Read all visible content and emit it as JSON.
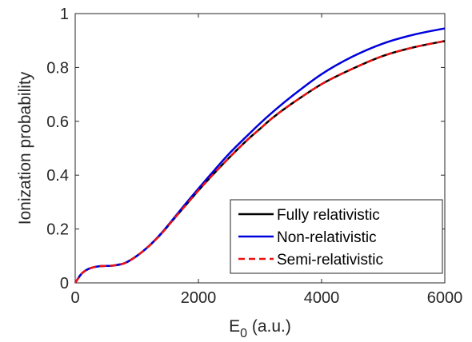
{
  "chart_data": {
    "type": "line",
    "xlabel_main": "E",
    "xlabel_sub": "0",
    "xlabel_unit": " (a.u.)",
    "ylabel": "Ionization probability",
    "xlim": [
      0,
      6000
    ],
    "ylim": [
      0,
      1
    ],
    "x_ticks": [
      0,
      2000,
      4000,
      6000
    ],
    "x_tick_labels": [
      "0",
      "2000",
      "4000",
      "6000"
    ],
    "y_ticks": [
      0,
      0.2,
      0.4,
      0.6,
      0.8,
      1
    ],
    "y_tick_labels": [
      "0",
      "0.2",
      "0.4",
      "0.6",
      "0.8",
      "1"
    ],
    "grid": false,
    "legend_position": "bottom-right",
    "series": [
      {
        "name": "Fully relativistic",
        "color": "#000000",
        "style": "solid",
        "x": [
          0,
          100,
          200,
          300,
          400,
          500,
          600,
          800,
          1000,
          1200,
          1400,
          1600,
          1800,
          2000,
          2200,
          2500,
          2800,
          3000,
          3200,
          3500,
          4000,
          4500,
          5000,
          5500,
          6000
        ],
        "y": [
          0,
          0.033,
          0.05,
          0.058,
          0.062,
          0.063,
          0.064,
          0.073,
          0.1,
          0.137,
          0.183,
          0.237,
          0.29,
          0.343,
          0.393,
          0.465,
          0.532,
          0.572,
          0.612,
          0.663,
          0.738,
          0.795,
          0.843,
          0.875,
          0.898
        ]
      },
      {
        "name": "Non-relativistic",
        "color": "#0000dd",
        "style": "solid",
        "x": [
          0,
          100,
          200,
          300,
          400,
          500,
          600,
          800,
          1000,
          1200,
          1400,
          1600,
          1800,
          2000,
          2200,
          2500,
          2800,
          3000,
          3200,
          3500,
          4000,
          4500,
          5000,
          5500,
          6000
        ],
        "y": [
          0,
          0.033,
          0.05,
          0.058,
          0.062,
          0.063,
          0.064,
          0.073,
          0.1,
          0.138,
          0.185,
          0.24,
          0.296,
          0.35,
          0.403,
          0.48,
          0.548,
          0.592,
          0.633,
          0.69,
          0.775,
          0.84,
          0.889,
          0.922,
          0.945
        ]
      },
      {
        "name": "Semi-relativistic",
        "color": "#ee1111",
        "style": "dashed",
        "x": [
          0,
          100,
          200,
          300,
          400,
          500,
          600,
          800,
          1000,
          1200,
          1400,
          1600,
          1800,
          2000,
          2200,
          2500,
          2800,
          3000,
          3200,
          3500,
          4000,
          4500,
          5000,
          5500,
          6000
        ],
        "y": [
          0,
          0.033,
          0.05,
          0.058,
          0.062,
          0.063,
          0.064,
          0.073,
          0.1,
          0.137,
          0.183,
          0.237,
          0.29,
          0.343,
          0.393,
          0.465,
          0.532,
          0.572,
          0.612,
          0.663,
          0.738,
          0.795,
          0.843,
          0.875,
          0.898
        ]
      }
    ]
  }
}
